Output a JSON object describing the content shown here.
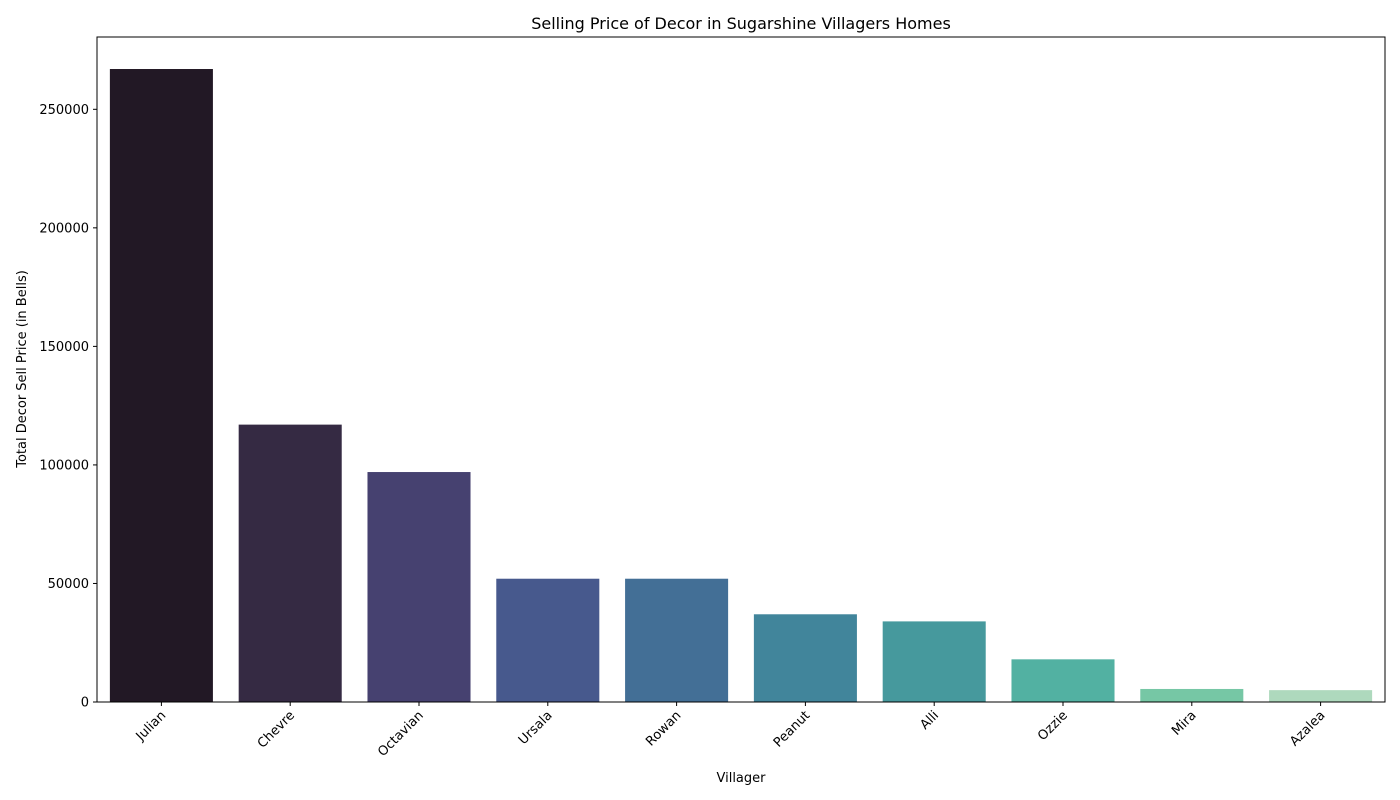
{
  "chart_data": {
    "type": "bar",
    "title": "Selling Price of Decor in Sugarshine Villagers Homes",
    "xlabel": "Villager",
    "ylabel": "Total Decor Sell Price (in Bells)",
    "categories": [
      "Julian",
      "Chevre",
      "Octavian",
      "Ursala",
      "Rowan",
      "Peanut",
      "Alli",
      "Ozzie",
      "Mira",
      "Azalea"
    ],
    "values": [
      267000,
      117000,
      97000,
      52000,
      52000,
      37000,
      34000,
      18000,
      5500,
      5000
    ],
    "colors": [
      "#221825",
      "#352a43",
      "#464170",
      "#47598d",
      "#436f96",
      "#41859b",
      "#46999d",
      "#52b1a2",
      "#76c7a5",
      "#aed9bd"
    ],
    "ylim": [
      0,
      280500
    ],
    "yticks": [
      0,
      50000,
      100000,
      150000,
      200000,
      250000
    ],
    "grid": false,
    "legend": "none"
  }
}
